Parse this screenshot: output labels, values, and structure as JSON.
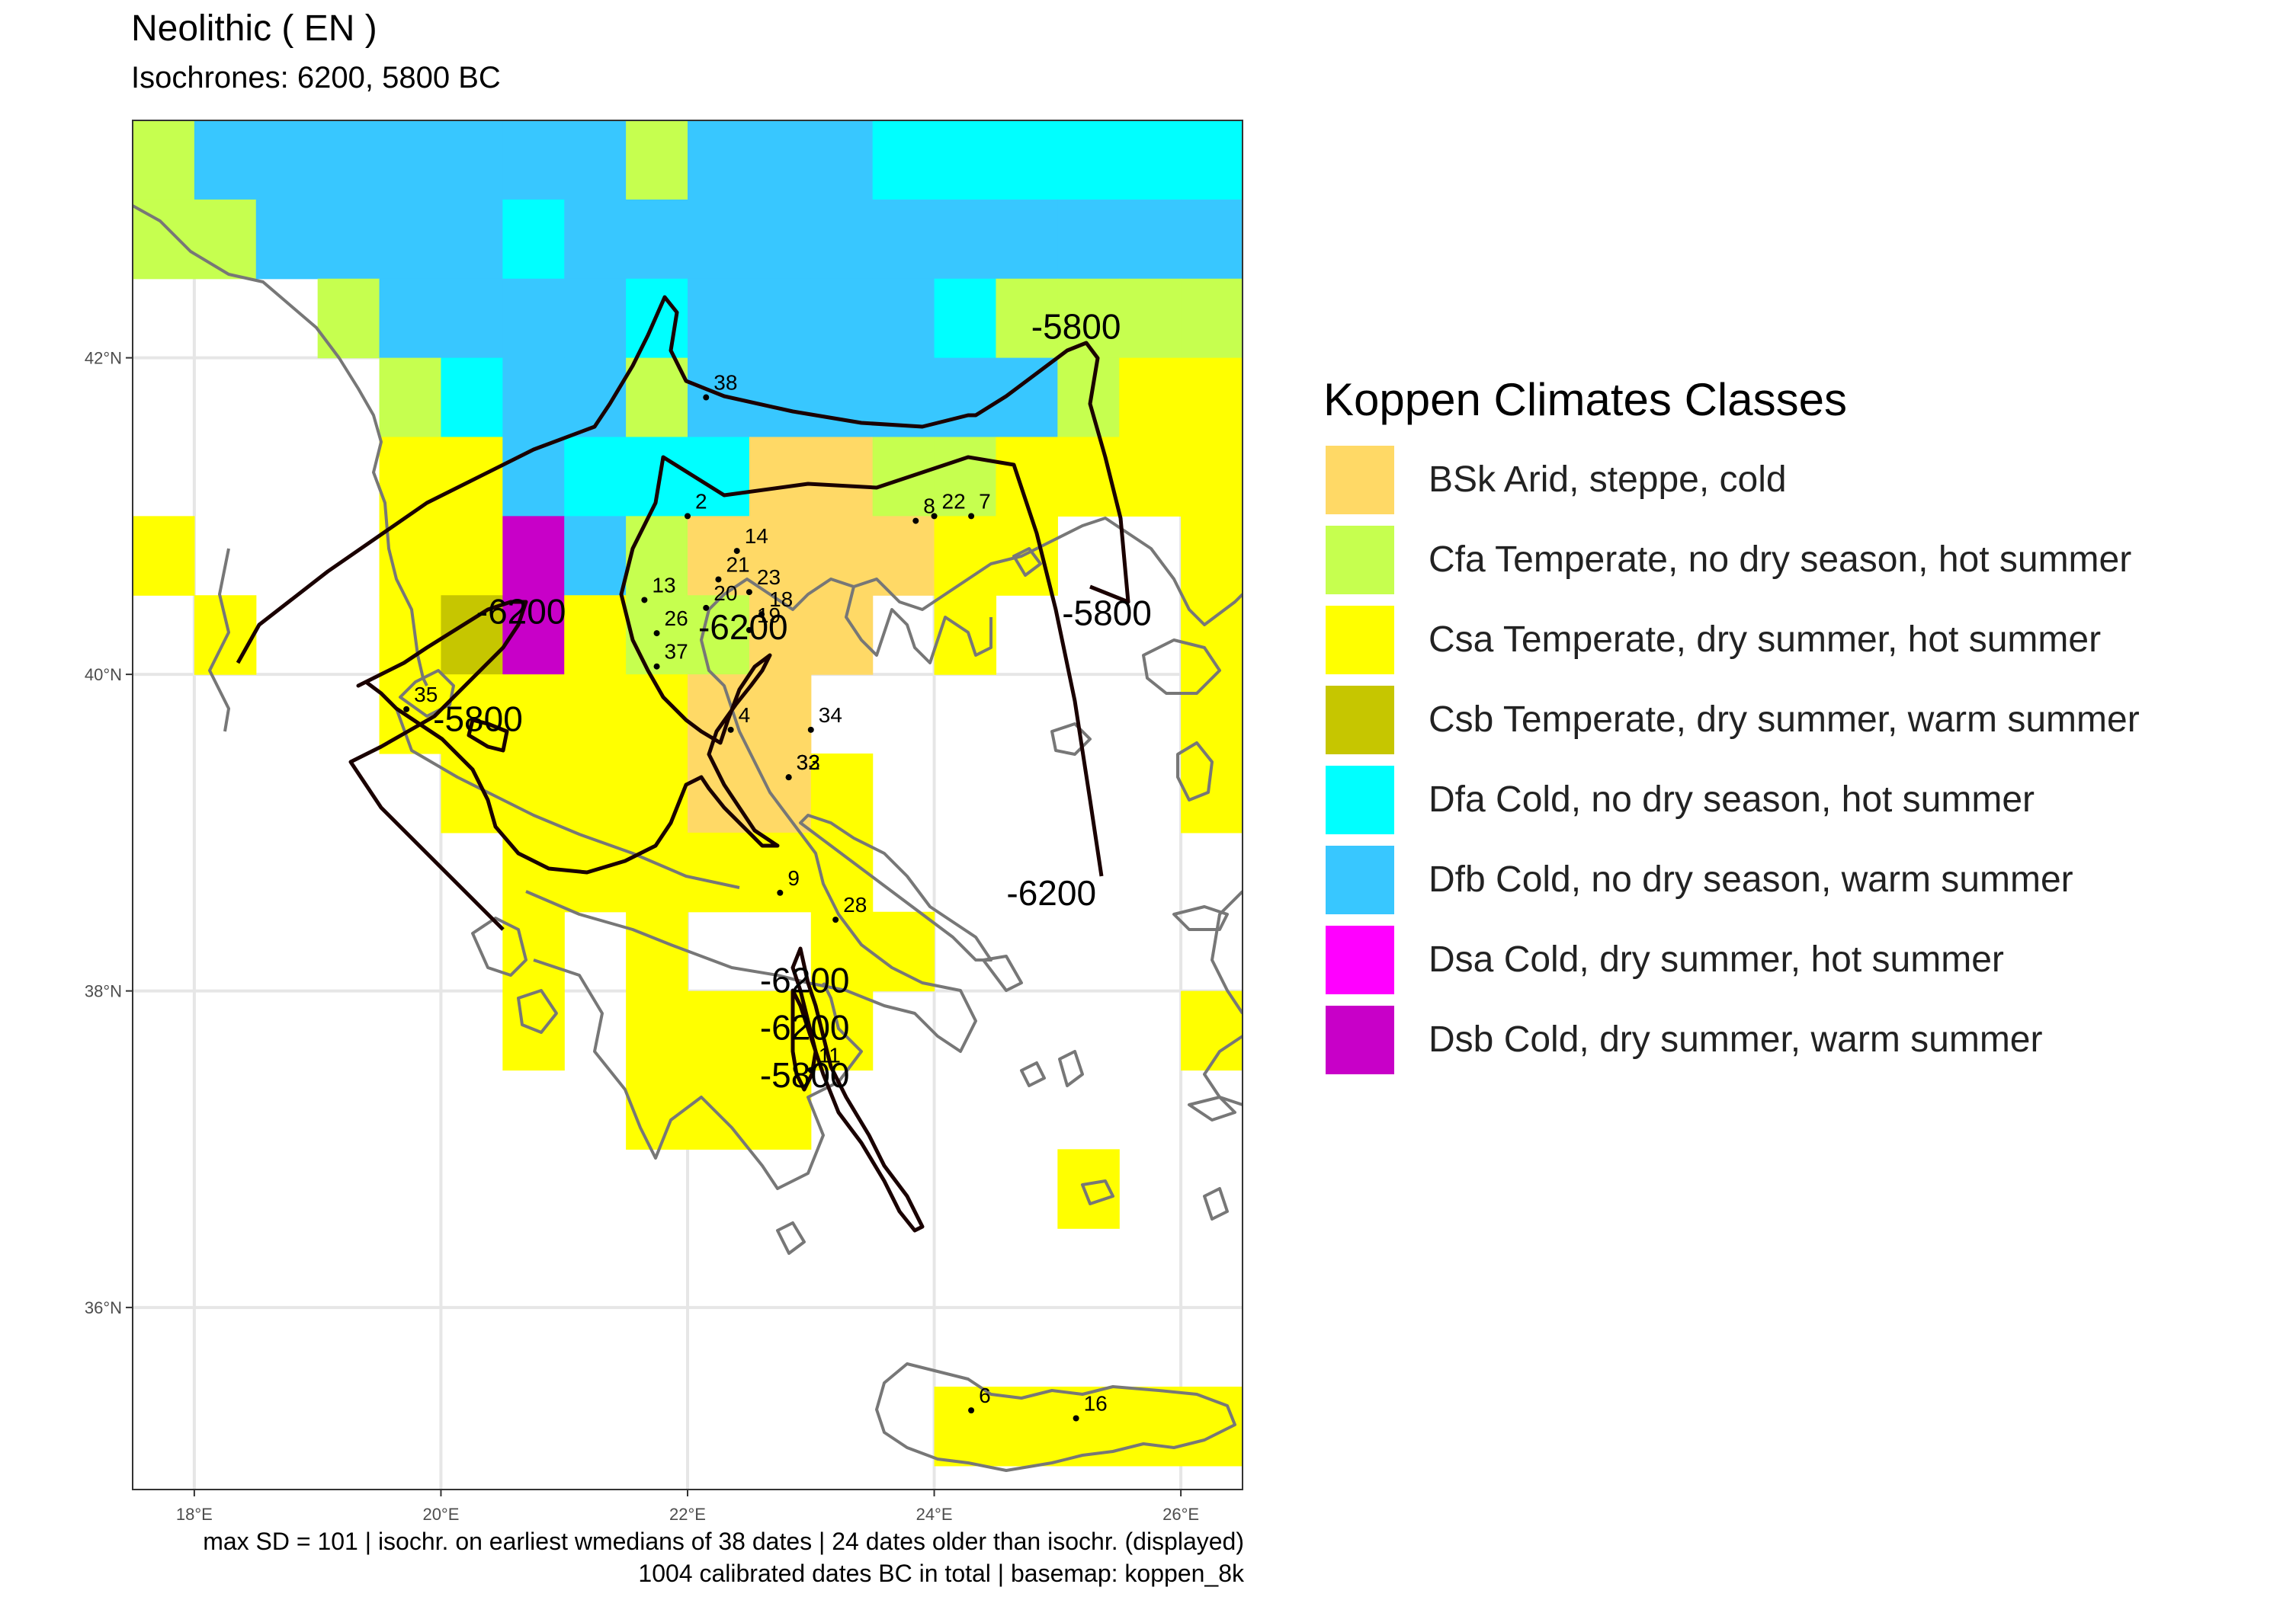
{
  "title": "Neolithic ( EN )",
  "subtitle": "Isochrones: 6200, 5800 BC",
  "caption": {
    "line1": "max SD = 101 | isochr. on earliest wmedians of 38 dates | 24 dates older than isochr. (displayed)",
    "line2": "1004 calibrated dates BC in total | basemap: koppen_8k"
  },
  "axes": {
    "x_ticks": [
      "18°E",
      "20°E",
      "22°E",
      "24°E",
      "26°E"
    ],
    "y_ticks": [
      "42°N",
      "40°N",
      "38°N",
      "36°N"
    ],
    "x_values": [
      18,
      20,
      22,
      24,
      26
    ],
    "y_values": [
      42,
      40,
      38,
      36
    ],
    "xlim": [
      17.5,
      26.5
    ],
    "ylim": [
      34.85,
      43.5
    ],
    "grid": true
  },
  "legend": {
    "title": "Koppen Climates Classes",
    "items": [
      {
        "code": "BSk",
        "label": "BSk Arid, steppe, cold",
        "color": "#FFD966"
      },
      {
        "code": "Cfa",
        "label": "Cfa Temperate, no dry season, hot summer",
        "color": "#C6FF4F"
      },
      {
        "code": "Csa",
        "label": "Csa Temperate, dry summer, hot summer",
        "color": "#FFFF00"
      },
      {
        "code": "Csb",
        "label": "Csb Temperate, dry summer, warm summer",
        "color": "#C6C600"
      },
      {
        "code": "Dfa",
        "label": "Dfa Cold, no dry season, hot summer",
        "color": "#00FFFF"
      },
      {
        "code": "Dfb",
        "label": "Dfb Cold, no dry season, warm summer",
        "color": "#38C7FF"
      },
      {
        "code": "Dsa",
        "label": "Dsa Cold, dry summer, hot summer",
        "color": "#FF00FF"
      },
      {
        "code": "Dsb",
        "label": "Dsb Cold, dry summer, warm summer",
        "color": "#C800C8"
      }
    ]
  },
  "climate_grid": [
    {
      "lon": 17.75,
      "lat": 43.25,
      "c": "Cfa"
    },
    {
      "lon": 18.25,
      "lat": 43.25,
      "c": "Dfb"
    },
    {
      "lon": 18.75,
      "lat": 43.25,
      "c": "Dfb"
    },
    {
      "lon": 19.25,
      "lat": 43.25,
      "c": "Dfb"
    },
    {
      "lon": 19.75,
      "lat": 43.25,
      "c": "Dfb"
    },
    {
      "lon": 20.25,
      "lat": 43.25,
      "c": "Dfb"
    },
    {
      "lon": 20.75,
      "lat": 43.25,
      "c": "Dfb"
    },
    {
      "lon": 21.25,
      "lat": 43.25,
      "c": "Dfb"
    },
    {
      "lon": 21.75,
      "lat": 43.25,
      "c": "Cfa"
    },
    {
      "lon": 22.25,
      "lat": 43.25,
      "c": "Dfb"
    },
    {
      "lon": 22.75,
      "lat": 43.25,
      "c": "Dfb"
    },
    {
      "lon": 23.25,
      "lat": 43.25,
      "c": "Dfb"
    },
    {
      "lon": 23.75,
      "lat": 43.25,
      "c": "Dfa"
    },
    {
      "lon": 24.25,
      "lat": 43.25,
      "c": "Dfa"
    },
    {
      "lon": 24.75,
      "lat": 43.25,
      "c": "Dfa"
    },
    {
      "lon": 25.25,
      "lat": 43.25,
      "c": "Dfa"
    },
    {
      "lon": 25.75,
      "lat": 43.25,
      "c": "Dfa"
    },
    {
      "lon": 26.25,
      "lat": 43.25,
      "c": "Dfa"
    },
    {
      "lon": 17.75,
      "lat": 42.75,
      "c": "Cfa"
    },
    {
      "lon": 18.25,
      "lat": 42.75,
      "c": "Cfa"
    },
    {
      "lon": 18.75,
      "lat": 42.75,
      "c": "Dfb"
    },
    {
      "lon": 19.25,
      "lat": 42.75,
      "c": "Dfb"
    },
    {
      "lon": 19.75,
      "lat": 42.75,
      "c": "Dfb"
    },
    {
      "lon": 20.25,
      "lat": 42.75,
      "c": "Dfb"
    },
    {
      "lon": 20.75,
      "lat": 42.75,
      "c": "Dfa"
    },
    {
      "lon": 21.25,
      "lat": 42.75,
      "c": "Dfb"
    },
    {
      "lon": 21.75,
      "lat": 42.75,
      "c": "Dfb"
    },
    {
      "lon": 22.25,
      "lat": 42.75,
      "c": "Dfb"
    },
    {
      "lon": 22.75,
      "lat": 42.75,
      "c": "Dfb"
    },
    {
      "lon": 23.25,
      "lat": 42.75,
      "c": "Dfb"
    },
    {
      "lon": 23.75,
      "lat": 42.75,
      "c": "Dfb"
    },
    {
      "lon": 24.25,
      "lat": 42.75,
      "c": "Dfb"
    },
    {
      "lon": 24.75,
      "lat": 42.75,
      "c": "Dfb"
    },
    {
      "lon": 25.25,
      "lat": 42.75,
      "c": "Dfb"
    },
    {
      "lon": 25.75,
      "lat": 42.75,
      "c": "Dfb"
    },
    {
      "lon": 26.25,
      "lat": 42.75,
      "c": "Dfb"
    },
    {
      "lon": 19.25,
      "lat": 42.25,
      "c": "Cfa"
    },
    {
      "lon": 19.75,
      "lat": 42.25,
      "c": "Dfb"
    },
    {
      "lon": 20.25,
      "lat": 42.25,
      "c": "Dfb"
    },
    {
      "lon": 20.75,
      "lat": 42.25,
      "c": "Dfb"
    },
    {
      "lon": 21.25,
      "lat": 42.25,
      "c": "Dfb"
    },
    {
      "lon": 21.75,
      "lat": 42.25,
      "c": "Dfa"
    },
    {
      "lon": 22.25,
      "lat": 42.25,
      "c": "Dfb"
    },
    {
      "lon": 22.75,
      "lat": 42.25,
      "c": "Dfb"
    },
    {
      "lon": 23.25,
      "lat": 42.25,
      "c": "Dfb"
    },
    {
      "lon": 23.75,
      "lat": 42.25,
      "c": "Dfb"
    },
    {
      "lon": 24.25,
      "lat": 42.25,
      "c": "Dfa"
    },
    {
      "lon": 24.75,
      "lat": 42.25,
      "c": "Cfa"
    },
    {
      "lon": 25.25,
      "lat": 42.25,
      "c": "Cfa"
    },
    {
      "lon": 25.75,
      "lat": 42.25,
      "c": "Cfa"
    },
    {
      "lon": 26.25,
      "lat": 42.25,
      "c": "Cfa"
    },
    {
      "lon": 19.75,
      "lat": 41.75,
      "c": "Cfa"
    },
    {
      "lon": 20.25,
      "lat": 41.75,
      "c": "Dfa"
    },
    {
      "lon": 20.75,
      "lat": 41.75,
      "c": "Dfb"
    },
    {
      "lon": 21.25,
      "lat": 41.75,
      "c": "Dfb"
    },
    {
      "lon": 21.75,
      "lat": 41.75,
      "c": "Cfa"
    },
    {
      "lon": 22.25,
      "lat": 41.75,
      "c": "Dfb"
    },
    {
      "lon": 22.75,
      "lat": 41.75,
      "c": "Dfb"
    },
    {
      "lon": 23.25,
      "lat": 41.75,
      "c": "Dfb"
    },
    {
      "lon": 23.75,
      "lat": 41.75,
      "c": "Dfb"
    },
    {
      "lon": 24.25,
      "lat": 41.75,
      "c": "Dfb"
    },
    {
      "lon": 24.75,
      "lat": 41.75,
      "c": "Dfb"
    },
    {
      "lon": 25.25,
      "lat": 41.75,
      "c": "Cfa"
    },
    {
      "lon": 25.75,
      "lat": 41.75,
      "c": "Csa"
    },
    {
      "lon": 26.25,
      "lat": 41.75,
      "c": "Csa"
    },
    {
      "lon": 19.75,
      "lat": 41.25,
      "c": "Csa"
    },
    {
      "lon": 20.25,
      "lat": 41.25,
      "c": "Csa"
    },
    {
      "lon": 20.75,
      "lat": 41.25,
      "c": "Dfb"
    },
    {
      "lon": 21.25,
      "lat": 41.25,
      "c": "Dfa"
    },
    {
      "lon": 21.75,
      "lat": 41.25,
      "c": "Dfa"
    },
    {
      "lon": 22.25,
      "lat": 41.25,
      "c": "Dfa"
    },
    {
      "lon": 22.75,
      "lat": 41.25,
      "c": "BSk"
    },
    {
      "lon": 23.25,
      "lat": 41.25,
      "c": "BSk"
    },
    {
      "lon": 23.75,
      "lat": 41.25,
      "c": "Cfa"
    },
    {
      "lon": 24.25,
      "lat": 41.25,
      "c": "Cfa"
    },
    {
      "lon": 24.75,
      "lat": 41.25,
      "c": "Csa"
    },
    {
      "lon": 25.25,
      "lat": 41.25,
      "c": "Csa"
    },
    {
      "lon": 25.75,
      "lat": 41.25,
      "c": "Csa"
    },
    {
      "lon": 26.25,
      "lat": 41.25,
      "c": "Csa"
    },
    {
      "lon": 17.75,
      "lat": 40.75,
      "c": "Csa"
    },
    {
      "lon": 19.75,
      "lat": 40.75,
      "c": "Csa"
    },
    {
      "lon": 20.25,
      "lat": 40.75,
      "c": "Csa"
    },
    {
      "lon": 20.75,
      "lat": 40.75,
      "c": "Dsb"
    },
    {
      "lon": 21.25,
      "lat": 40.75,
      "c": "Dfb"
    },
    {
      "lon": 21.75,
      "lat": 40.75,
      "c": "Cfa"
    },
    {
      "lon": 22.25,
      "lat": 40.75,
      "c": "BSk"
    },
    {
      "lon": 22.75,
      "lat": 40.75,
      "c": "BSk"
    },
    {
      "lon": 23.25,
      "lat": 40.75,
      "c": "BSk"
    },
    {
      "lon": 23.75,
      "lat": 40.75,
      "c": "BSk"
    },
    {
      "lon": 24.25,
      "lat": 40.75,
      "c": "Csa"
    },
    {
      "lon": 24.75,
      "lat": 40.75,
      "c": "Csa"
    },
    {
      "lon": 26.25,
      "lat": 40.75,
      "c": "Csa"
    },
    {
      "lon": 18.25,
      "lat": 40.25,
      "c": "Csa"
    },
    {
      "lon": 19.75,
      "lat": 40.25,
      "c": "Csa"
    },
    {
      "lon": 20.25,
      "lat": 40.25,
      "c": "Csb"
    },
    {
      "lon": 20.75,
      "lat": 40.25,
      "c": "Dsb"
    },
    {
      "lon": 21.25,
      "lat": 40.25,
      "c": "Csa"
    },
    {
      "lon": 21.75,
      "lat": 40.25,
      "c": "Cfa"
    },
    {
      "lon": 22.25,
      "lat": 40.25,
      "c": "Cfa"
    },
    {
      "lon": 22.75,
      "lat": 40.25,
      "c": "BSk"
    },
    {
      "lon": 23.25,
      "lat": 40.25,
      "c": "BSk"
    },
    {
      "lon": 24.25,
      "lat": 40.25,
      "c": "Csa"
    },
    {
      "lon": 26.25,
      "lat": 40.25,
      "c": "Csa"
    },
    {
      "lon": 19.75,
      "lat": 39.75,
      "c": "Csa"
    },
    {
      "lon": 20.25,
      "lat": 39.75,
      "c": "Csa"
    },
    {
      "lon": 20.75,
      "lat": 39.75,
      "c": "Csa"
    },
    {
      "lon": 21.25,
      "lat": 39.75,
      "c": "Csa"
    },
    {
      "lon": 21.75,
      "lat": 39.75,
      "c": "Csa"
    },
    {
      "lon": 22.25,
      "lat": 39.75,
      "c": "BSk"
    },
    {
      "lon": 22.75,
      "lat": 39.75,
      "c": "BSk"
    },
    {
      "lon": 26.25,
      "lat": 39.75,
      "c": "Csa"
    },
    {
      "lon": 20.25,
      "lat": 39.25,
      "c": "Csa"
    },
    {
      "lon": 20.75,
      "lat": 39.25,
      "c": "Csa"
    },
    {
      "lon": 21.25,
      "lat": 39.25,
      "c": "Csa"
    },
    {
      "lon": 21.75,
      "lat": 39.25,
      "c": "Csa"
    },
    {
      "lon": 22.25,
      "lat": 39.25,
      "c": "BSk"
    },
    {
      "lon": 22.75,
      "lat": 39.25,
      "c": "BSk"
    },
    {
      "lon": 23.25,
      "lat": 39.25,
      "c": "Csa"
    },
    {
      "lon": 26.25,
      "lat": 39.25,
      "c": "Csa"
    },
    {
      "lon": 20.75,
      "lat": 38.75,
      "c": "Csa"
    },
    {
      "lon": 21.25,
      "lat": 38.75,
      "c": "Csa"
    },
    {
      "lon": 21.75,
      "lat": 38.75,
      "c": "Csa"
    },
    {
      "lon": 22.25,
      "lat": 38.75,
      "c": "Csa"
    },
    {
      "lon": 22.75,
      "lat": 38.75,
      "c": "Csa"
    },
    {
      "lon": 23.25,
      "lat": 38.75,
      "c": "Csa"
    },
    {
      "lon": 20.75,
      "lat": 38.25,
      "c": "Csa"
    },
    {
      "lon": 21.75,
      "lat": 38.25,
      "c": "Csa"
    },
    {
      "lon": 23.25,
      "lat": 38.25,
      "c": "Csa"
    },
    {
      "lon": 23.75,
      "lat": 38.25,
      "c": "Csa"
    },
    {
      "lon": 20.75,
      "lat": 37.75,
      "c": "Csa"
    },
    {
      "lon": 21.75,
      "lat": 37.75,
      "c": "Csa"
    },
    {
      "lon": 22.25,
      "lat": 37.75,
      "c": "Csa"
    },
    {
      "lon": 22.75,
      "lat": 37.75,
      "c": "Csa"
    },
    {
      "lon": 23.25,
      "lat": 37.75,
      "c": "Csa"
    },
    {
      "lon": 26.25,
      "lat": 37.75,
      "c": "Csa"
    },
    {
      "lon": 21.75,
      "lat": 37.25,
      "c": "Csa"
    },
    {
      "lon": 22.25,
      "lat": 37.25,
      "c": "Csa"
    },
    {
      "lon": 22.75,
      "lat": 37.25,
      "c": "Csa"
    },
    {
      "lon": 25.25,
      "lat": 36.75,
      "c": "Csa"
    },
    {
      "lon": 24.25,
      "lat": 35.25,
      "c": "Csa"
    },
    {
      "lon": 24.75,
      "lat": 35.25,
      "c": "Csa"
    },
    {
      "lon": 25.25,
      "lat": 35.25,
      "c": "Csa"
    },
    {
      "lon": 25.75,
      "lat": 35.25,
      "c": "Csa"
    },
    {
      "lon": 26.25,
      "lat": 35.25,
      "c": "Csa"
    }
  ],
  "sites": [
    {
      "id": "38",
      "lon": 22.15,
      "lat": 41.75
    },
    {
      "id": "2",
      "lon": 22.0,
      "lat": 41.0
    },
    {
      "id": "14",
      "lon": 22.4,
      "lat": 40.78
    },
    {
      "id": "22",
      "lon": 24.0,
      "lat": 41.0
    },
    {
      "id": "8",
      "lon": 23.85,
      "lat": 40.97
    },
    {
      "id": "7",
      "lon": 24.3,
      "lat": 41.0
    },
    {
      "id": "21",
      "lon": 22.25,
      "lat": 40.6
    },
    {
      "id": "23",
      "lon": 22.5,
      "lat": 40.52
    },
    {
      "id": "13",
      "lon": 21.65,
      "lat": 40.47
    },
    {
      "id": "26",
      "lon": 21.75,
      "lat": 40.26
    },
    {
      "id": "20",
      "lon": 22.15,
      "lat": 40.42
    },
    {
      "id": "18",
      "lon": 22.6,
      "lat": 40.38
    },
    {
      "id": "19",
      "lon": 22.5,
      "lat": 40.28
    },
    {
      "id": "37",
      "lon": 21.75,
      "lat": 40.05
    },
    {
      "id": "4",
      "lon": 22.35,
      "lat": 39.65
    },
    {
      "id": "34",
      "lon": 23.0,
      "lat": 39.65
    },
    {
      "id": "32",
      "lon": 22.82,
      "lat": 39.35
    },
    {
      "id": "33",
      "lon": 22.82,
      "lat": 39.35
    },
    {
      "id": "35",
      "lon": 19.72,
      "lat": 39.78
    },
    {
      "id": "9",
      "lon": 22.75,
      "lat": 38.62
    },
    {
      "id": "28",
      "lon": 23.2,
      "lat": 38.45
    },
    {
      "id": "11",
      "lon": 23.0,
      "lat": 37.5
    },
    {
      "id": "6",
      "lon": 24.3,
      "lat": 35.35
    },
    {
      "id": "16",
      "lon": 25.15,
      "lat": 35.3
    }
  ],
  "isochrone_labels": [
    {
      "text": "-5800",
      "lon": 25.15,
      "lat": 42.18
    },
    {
      "text": "-5800",
      "lon": 25.4,
      "lat": 40.37
    },
    {
      "text": "-6200",
      "lon": 20.65,
      "lat": 40.38
    },
    {
      "text": "-6200",
      "lon": 22.45,
      "lat": 40.28
    },
    {
      "text": "-5800",
      "lon": 20.3,
      "lat": 39.7
    },
    {
      "text": "-6200",
      "lon": 24.95,
      "lat": 38.6
    },
    {
      "text": "-6200",
      "lon": 22.95,
      "lat": 38.05
    },
    {
      "text": "-6200",
      "lon": 22.95,
      "lat": 37.75
    },
    {
      "text": "-5800",
      "lon": 22.95,
      "lat": 37.45
    }
  ]
}
